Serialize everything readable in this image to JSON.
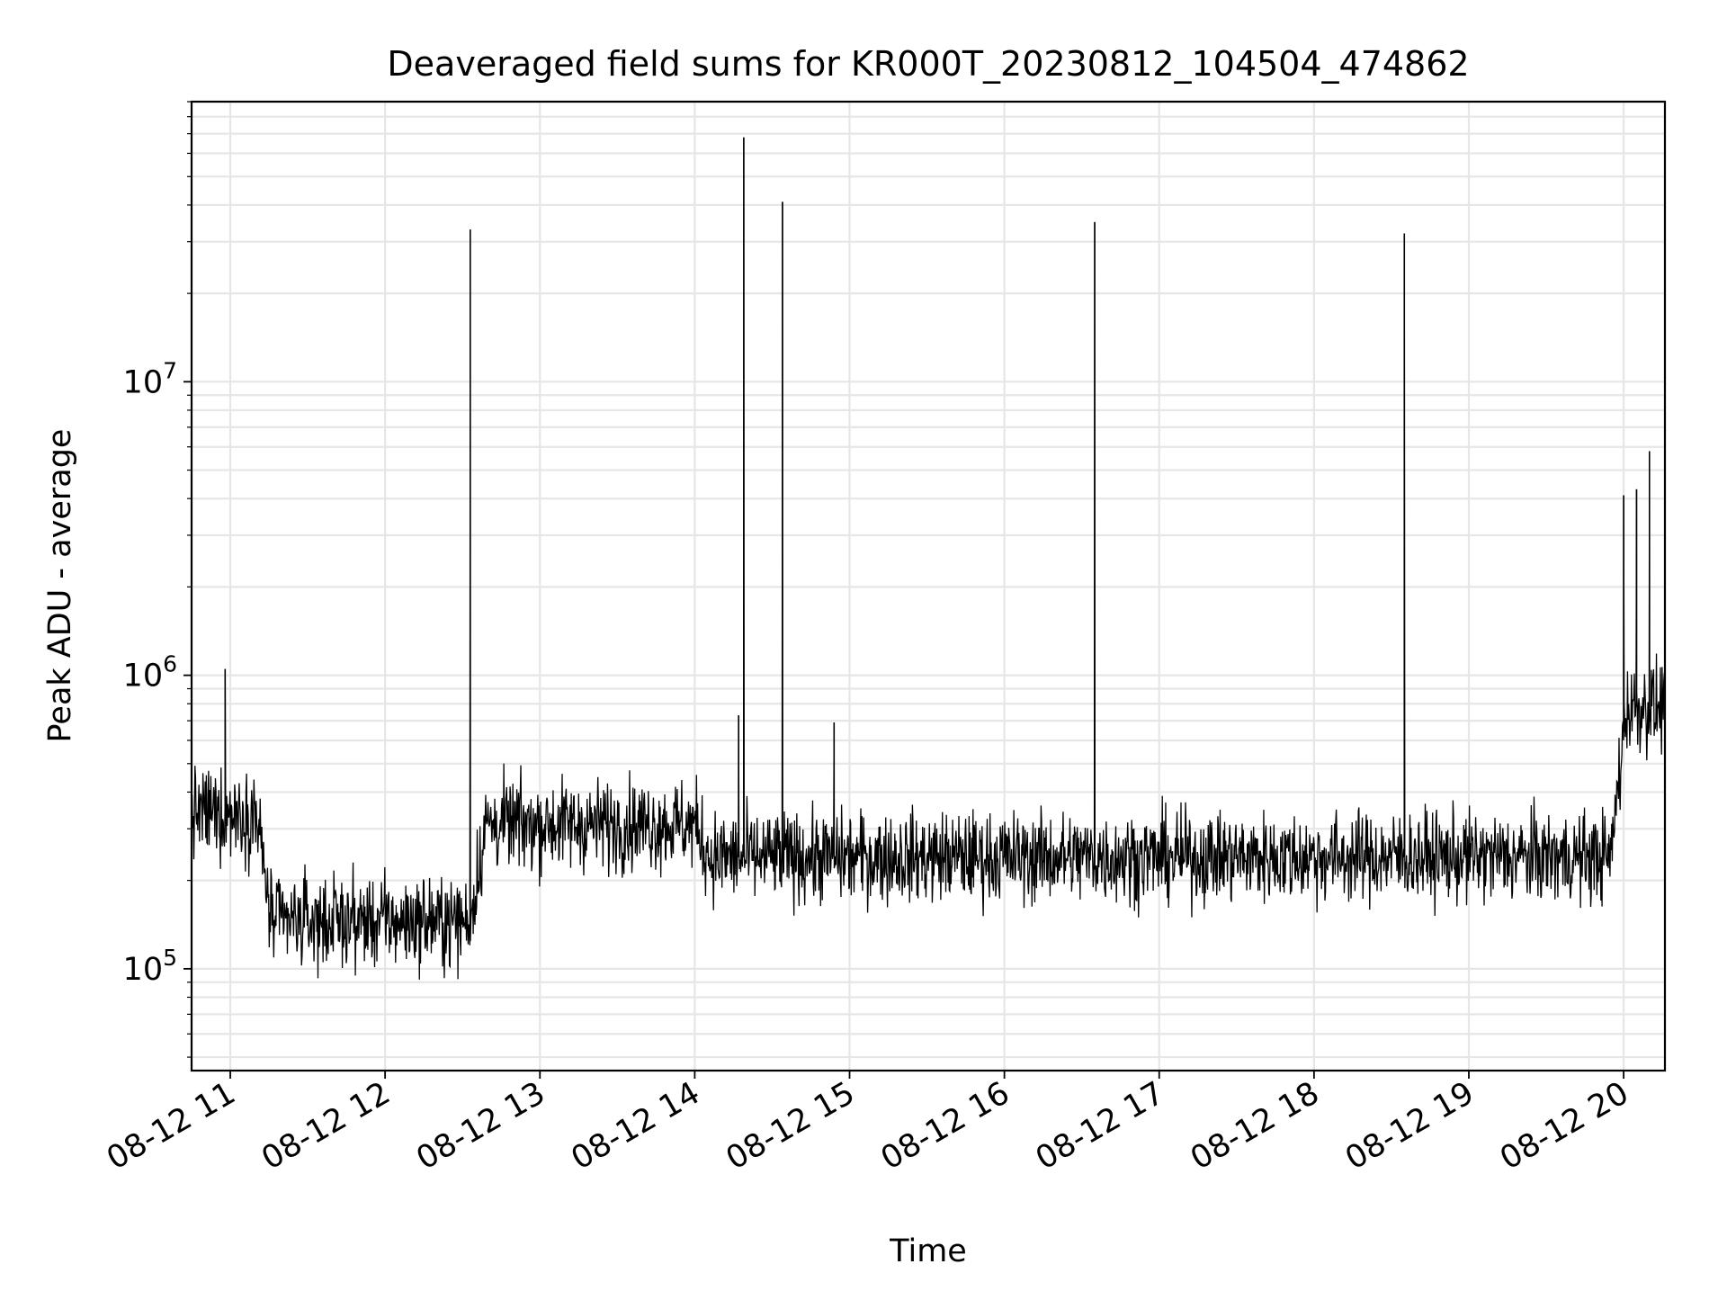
{
  "chart_data": {
    "type": "line",
    "title": "Deaveraged field sums for KR000T_20230812_104504_474862",
    "xlabel": "Time",
    "ylabel": "Peak ADU - average",
    "yscale": "log",
    "ylim": [
      45000,
      90000000
    ],
    "xlim": [
      "08-12 10:45",
      "08-12 20:16"
    ],
    "grid": true,
    "x_ticks": [
      "08-12 11",
      "08-12 12",
      "08-12 13",
      "08-12 14",
      "08-12 15",
      "08-12 16",
      "08-12 17",
      "08-12 18",
      "08-12 19",
      "08-12 20"
    ],
    "y_ticks": [
      {
        "base": "10",
        "exp": "5",
        "value": 100000
      },
      {
        "base": "10",
        "exp": "6",
        "value": 1000000
      },
      {
        "base": "10",
        "exp": "7",
        "value": 10000000
      }
    ],
    "series": [
      {
        "color": "#000000",
        "baseline_levels": [
          {
            "from": "08-12 10:45",
            "to": "08-12 11:10",
            "level": 340000
          },
          {
            "from": "08-12 11:10",
            "to": "08-12 12:33",
            "level": 145000
          },
          {
            "from": "08-12 12:33",
            "to": "08-12 14:00",
            "level": 310000
          },
          {
            "from": "08-12 14:00",
            "to": "08-12 19:55",
            "level": 240000
          },
          {
            "from": "08-12 19:55",
            "to": "08-12 20:16",
            "level": 780000
          }
        ],
        "spikes": [
          {
            "x": "08-12 10:58",
            "y": 1050000
          },
          {
            "x": "08-12 12:33",
            "y": 33000000
          },
          {
            "x": "08-12 14:17",
            "y": 730000
          },
          {
            "x": "08-12 14:19",
            "y": 68000000
          },
          {
            "x": "08-12 14:34",
            "y": 41000000
          },
          {
            "x": "08-12 14:54",
            "y": 690000
          },
          {
            "x": "08-12 16:35",
            "y": 35000000
          },
          {
            "x": "08-12 18:35",
            "y": 32000000
          },
          {
            "x": "08-12 20:00",
            "y": 4100000
          },
          {
            "x": "08-12 20:05",
            "y": 4300000
          },
          {
            "x": "08-12 20:10",
            "y": 5800000
          }
        ]
      }
    ]
  }
}
